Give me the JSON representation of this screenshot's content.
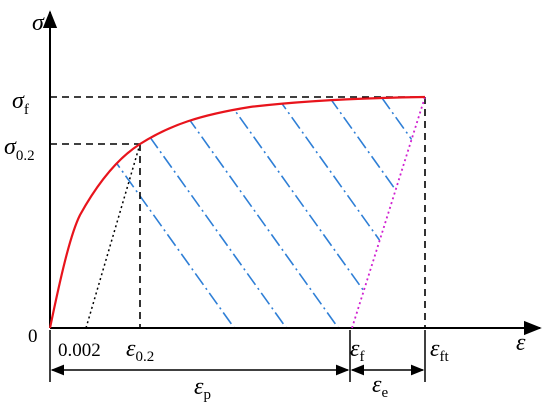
{
  "labels": {
    "sigma_axis": {
      "text": "σ"
    },
    "sigma_f": {
      "text": "σ",
      "sub": "f"
    },
    "sigma_02": {
      "text": "σ",
      "sub": "0.2"
    },
    "origin": {
      "text": "0"
    },
    "offset": {
      "text": "0.002"
    },
    "eps_02": {
      "text": "ε",
      "sub": "0.2"
    },
    "eps_f": {
      "text": "ε",
      "sub": "f"
    },
    "eps_ft": {
      "text": "ε",
      "sub": "ft"
    },
    "eps_axis": {
      "text": "ε"
    },
    "eps_p": {
      "text": "ε",
      "sub": "p"
    },
    "eps_e": {
      "text": "ε",
      "sub": "e"
    }
  }
}
